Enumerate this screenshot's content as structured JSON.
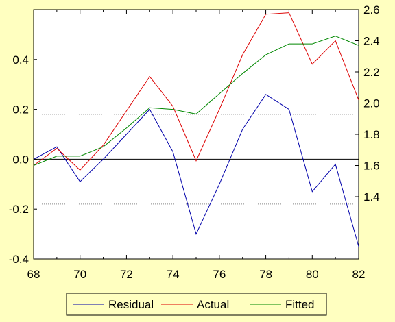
{
  "chart_data": {
    "type": "line",
    "x": [
      68,
      69,
      70,
      71,
      72,
      73,
      74,
      75,
      76,
      77,
      78,
      79,
      80,
      81,
      82
    ],
    "x_ticks": [
      68,
      70,
      72,
      74,
      76,
      78,
      80,
      82
    ],
    "x_tick_labels": [
      "68",
      "70",
      "72",
      "74",
      "76",
      "78",
      "80",
      "82"
    ],
    "xlim": [
      68,
      82
    ],
    "left_axis": {
      "ylim": [
        -0.4,
        0.6
      ],
      "ticks": [
        -0.4,
        -0.2,
        0.0,
        0.2,
        0.4
      ],
      "tick_labels": [
        "-0.4",
        "-0.2",
        "0.0",
        "0.2",
        "0.4"
      ],
      "zero_line": true,
      "dotted_reference_lines": [
        -0.18,
        0.18
      ]
    },
    "right_axis": {
      "ylim": [
        1.0,
        2.6
      ],
      "ticks": [
        1.4,
        1.6,
        1.8,
        2.0,
        2.2,
        2.4,
        2.6
      ],
      "tick_labels": [
        "1.4",
        "1.6",
        "1.8",
        "2.0",
        "2.2",
        "2.4",
        "2.6"
      ]
    },
    "series": [
      {
        "name": "Residual",
        "axis": "left",
        "color": "#0000aa",
        "values": [
          0.0,
          0.05,
          -0.09,
          0.0,
          0.1,
          0.2,
          0.03,
          -0.3,
          -0.1,
          0.12,
          0.26,
          0.2,
          -0.13,
          -0.02,
          -0.35
        ]
      },
      {
        "name": "Actual",
        "axis": "right",
        "color": "#dd0000",
        "values": [
          1.6,
          1.71,
          1.57,
          1.73,
          1.95,
          2.17,
          1.98,
          1.63,
          1.96,
          2.31,
          2.57,
          2.58,
          2.25,
          2.4,
          2.02
        ]
      },
      {
        "name": "Fitted",
        "axis": "right",
        "color": "#008800",
        "values": [
          1.6,
          1.66,
          1.66,
          1.72,
          1.84,
          1.97,
          1.96,
          1.93,
          2.06,
          2.19,
          2.31,
          2.38,
          2.38,
          2.43,
          2.37
        ]
      }
    ],
    "legend": {
      "placement": "bottom",
      "entries": [
        "Residual",
        "Actual",
        "Fitted"
      ]
    },
    "grid": false,
    "plot_background": "#ffffff",
    "page_background": "#ffffc0"
  }
}
